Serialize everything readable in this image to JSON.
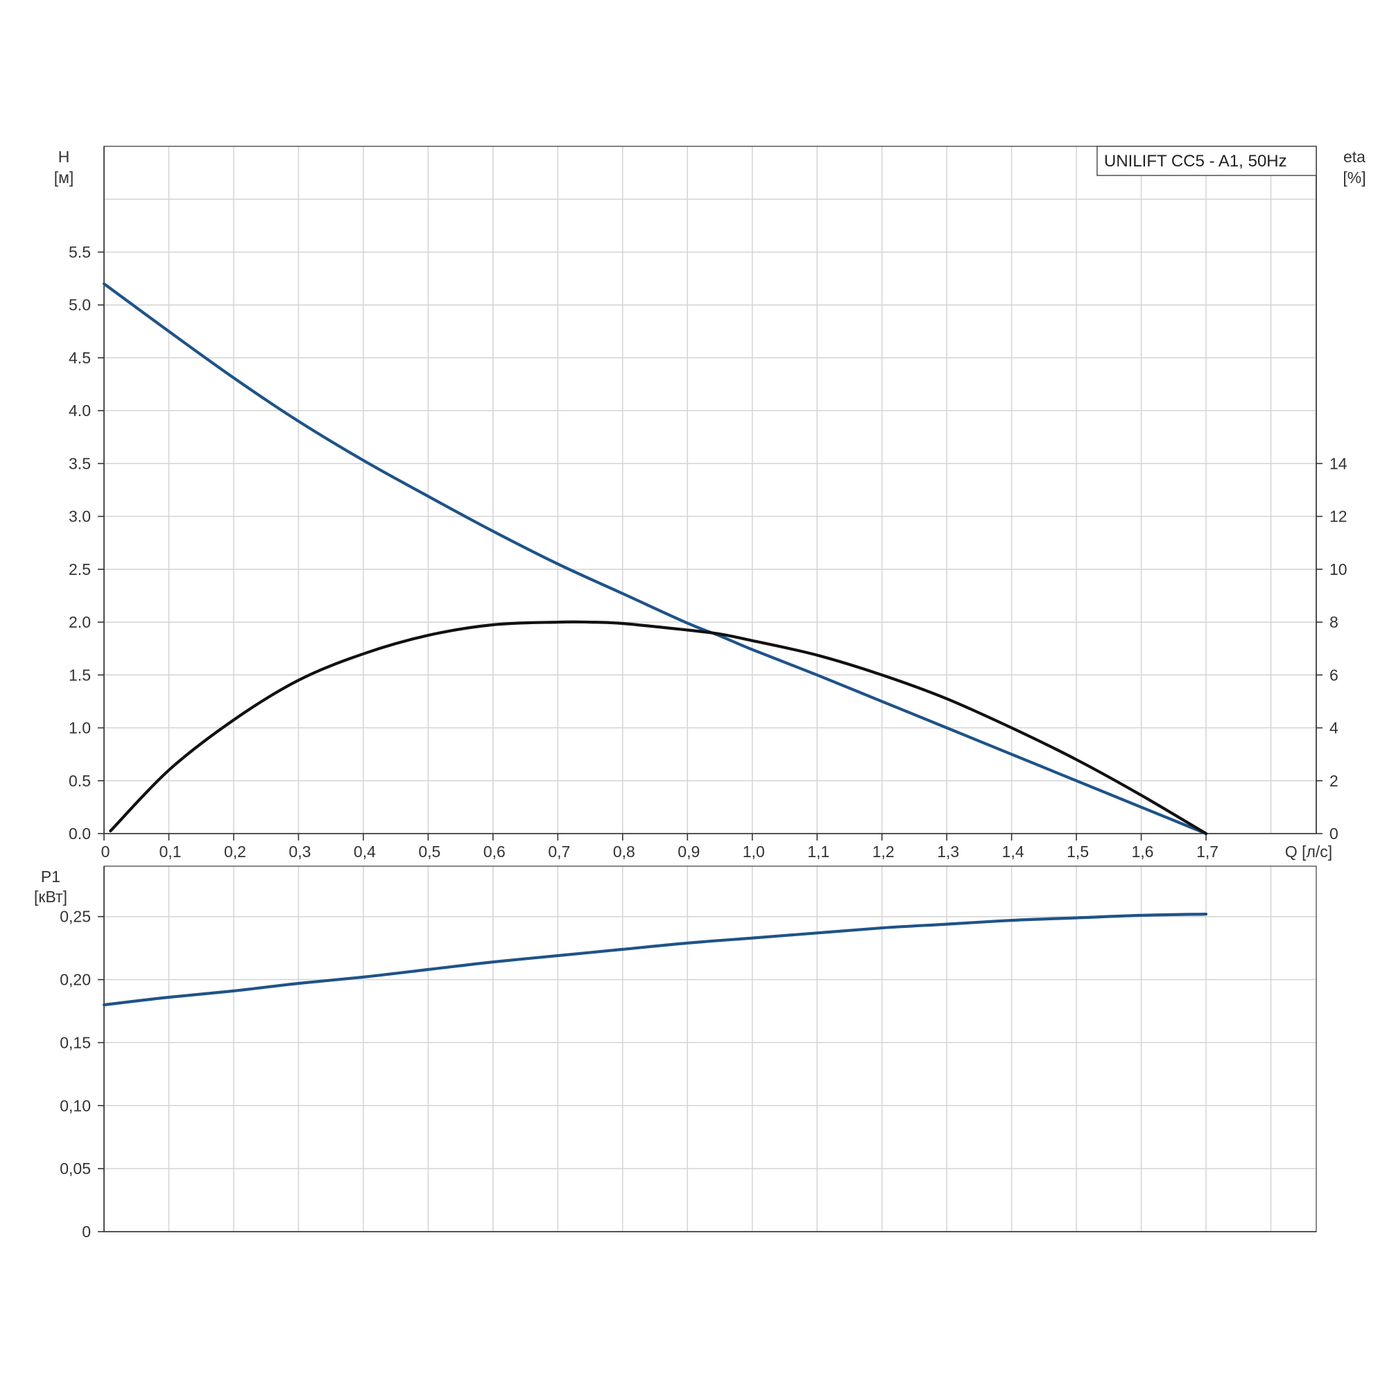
{
  "chart_data": [
    {
      "type": "line",
      "legend": "UNILIFT CC5 - A1, 50Hz",
      "legend_position": "top-right",
      "grid": true,
      "x_axis": {
        "label": "Q [л/с]",
        "range": [
          0,
          1.87
        ],
        "tick_labels": [
          "0",
          "0,1",
          "0,2",
          "0,3",
          "0,4",
          "0,5",
          "0,6",
          "0,7",
          "0,8",
          "0,9",
          "1,0",
          "1,1",
          "1,2",
          "1,3",
          "1,4",
          "1,5",
          "1,6",
          "1,7"
        ]
      },
      "y_axis_left": {
        "label_line1": "H",
        "label_line2": "[м]",
        "range": [
          0,
          6.5
        ],
        "tick_labels": [
          "0.0",
          "0.5",
          "1.0",
          "1.5",
          "2.0",
          "2.5",
          "3.0",
          "3.5",
          "4.0",
          "4.5",
          "5.0",
          "5.5"
        ]
      },
      "y_axis_right": {
        "label_line1": "eta",
        "label_line2": "[%]",
        "range": [
          0,
          26
        ],
        "tick_labels": [
          "0",
          "2",
          "4",
          "6",
          "8",
          "10",
          "12",
          "14"
        ]
      },
      "series": [
        {
          "axis": "left",
          "color": "#1f5388",
          "x": [
            0,
            0.1,
            0.2,
            0.3,
            0.4,
            0.5,
            0.6,
            0.7,
            0.8,
            0.9,
            0.95,
            1.0,
            1.1,
            1.2,
            1.3,
            1.4,
            1.5,
            1.6,
            1.7
          ],
          "y": [
            5.2,
            4.75,
            4.31,
            3.9,
            3.53,
            3.19,
            2.86,
            2.55,
            2.27,
            1.99,
            1.87,
            1.74,
            1.5,
            1.25,
            1.0,
            0.75,
            0.5,
            0.25,
            0.0
          ]
        },
        {
          "axis": "right",
          "color": "#111111",
          "x": [
            0.01,
            0.1,
            0.2,
            0.3,
            0.4,
            0.5,
            0.6,
            0.7,
            0.75,
            0.8,
            0.9,
            0.95,
            1.0,
            1.1,
            1.2,
            1.3,
            1.4,
            1.5,
            1.6,
            1.7
          ],
          "y": [
            0.1,
            2.4,
            4.3,
            5.8,
            6.8,
            7.5,
            7.9,
            8.0,
            8.0,
            7.95,
            7.7,
            7.55,
            7.3,
            6.75,
            6.0,
            5.1,
            4.0,
            2.8,
            1.45,
            0.0
          ]
        }
      ]
    },
    {
      "type": "line",
      "grid": true,
      "x_axis": {
        "range": [
          0,
          1.87
        ]
      },
      "y_axis_left": {
        "label_line1": "P1",
        "label_line2": "[кВт]",
        "range": [
          0,
          0.29
        ],
        "tick_labels": [
          "0",
          "0,05",
          "0,10",
          "0,15",
          "0,20",
          "0,25"
        ]
      },
      "series": [
        {
          "axis": "left",
          "color": "#1f5388",
          "x": [
            0,
            0.1,
            0.2,
            0.3,
            0.4,
            0.5,
            0.6,
            0.7,
            0.8,
            0.9,
            1.0,
            1.1,
            1.2,
            1.3,
            1.4,
            1.5,
            1.6,
            1.7
          ],
          "y": [
            0.18,
            0.186,
            0.191,
            0.197,
            0.202,
            0.208,
            0.214,
            0.219,
            0.224,
            0.229,
            0.233,
            0.237,
            0.241,
            0.244,
            0.247,
            0.249,
            0.251,
            0.252
          ]
        }
      ]
    }
  ]
}
